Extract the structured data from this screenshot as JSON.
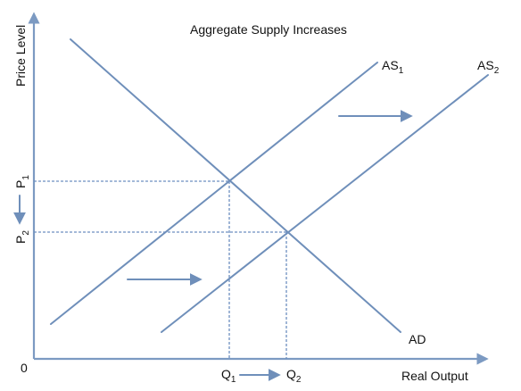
{
  "diagram": {
    "title": "Aggregate Supply Increases",
    "axes": {
      "y_label": "Price Level",
      "x_label": "Real Output",
      "origin": "0"
    },
    "curves": {
      "as1": {
        "main": "AS",
        "sub": "1"
      },
      "as2": {
        "main": "AS",
        "sub": "2"
      },
      "ad": {
        "label": "AD"
      }
    },
    "price_levels": {
      "p1": {
        "main": "P",
        "sub": "1"
      },
      "p2": {
        "main": "P",
        "sub": "2"
      }
    },
    "quantities": {
      "q1": {
        "main": "Q",
        "sub": "1"
      },
      "q2": {
        "main": "Q",
        "sub": "2"
      }
    },
    "colors": {
      "lines": "#6f8fba",
      "axes": "#7c9ac2",
      "text": "#111111"
    }
  }
}
